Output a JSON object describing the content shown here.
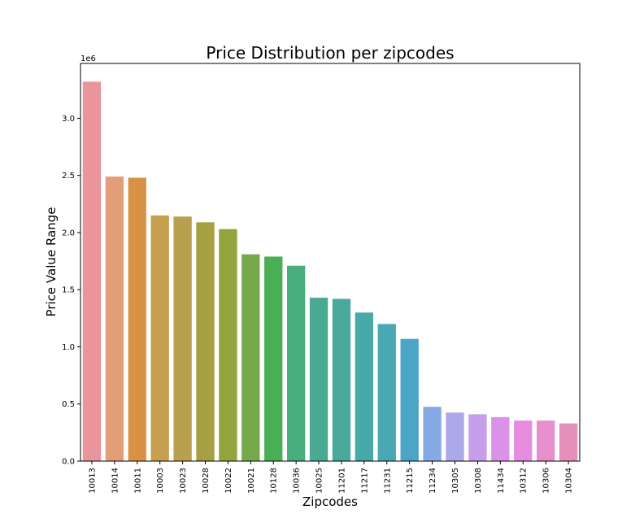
{
  "chart_data": {
    "type": "bar",
    "title": "Price Distribution per zipcodes",
    "xlabel": "Zipcodes",
    "ylabel": "Price Value Range",
    "y_offset_label": "1e6",
    "y_scale": 1000000,
    "ylim": [
      0,
      3480000
    ],
    "yticks": [
      0,
      500000,
      1000000,
      1500000,
      2000000,
      2500000,
      3000000
    ],
    "ytick_labels": [
      "0.0",
      "0.5",
      "1.0",
      "1.5",
      "2.0",
      "2.5",
      "3.0"
    ],
    "grid": false,
    "legend": "none",
    "categories": [
      "10013",
      "10014",
      "10011",
      "10003",
      "10023",
      "10028",
      "10022",
      "10021",
      "10128",
      "10036",
      "10025",
      "11201",
      "11217",
      "11231",
      "11215",
      "11234",
      "10305",
      "10308",
      "11434",
      "10312",
      "10306",
      "10304"
    ],
    "values": [
      3320000,
      2490000,
      2480000,
      2150000,
      2140000,
      2090000,
      2030000,
      1810000,
      1790000,
      1710000,
      1430000,
      1420000,
      1300000,
      1200000,
      1070000,
      475000,
      425000,
      410000,
      385000,
      355000,
      355000,
      330000
    ],
    "colors": [
      "#ea949b",
      "#e39d78",
      "#d89245",
      "#c69f4f",
      "#b9a04e",
      "#a6a043",
      "#93a43d",
      "#75a94b",
      "#4aae54",
      "#48ae7e",
      "#49aa91",
      "#49a99c",
      "#48a9a9",
      "#4aa8b4",
      "#4ba5c7",
      "#86aae4",
      "#aca9ea",
      "#c79eea",
      "#da92e8",
      "#e68de0",
      "#e78ecd",
      "#e490ba"
    ]
  }
}
